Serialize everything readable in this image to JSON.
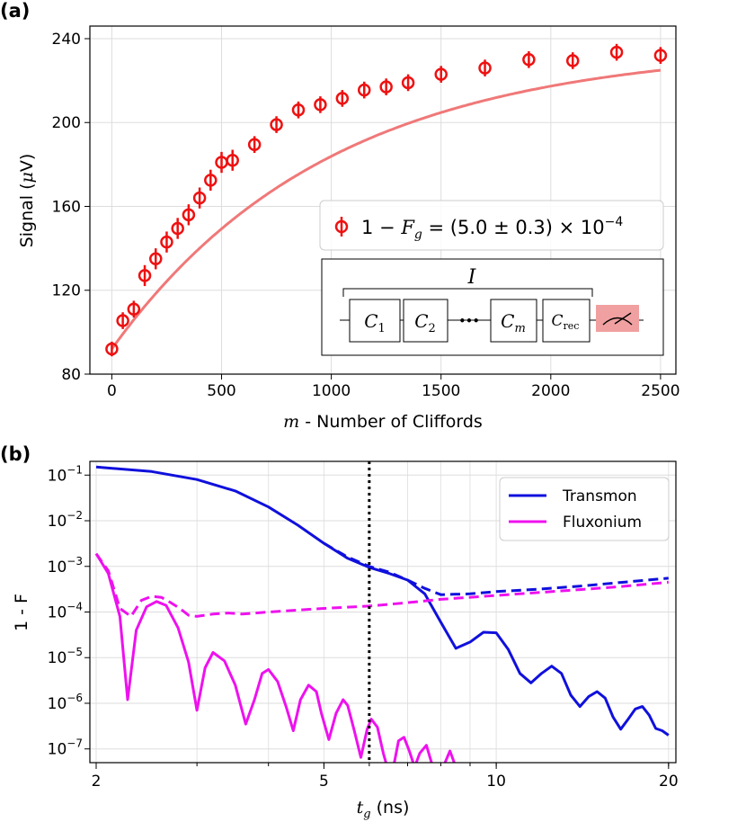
{
  "panels": {
    "a": "(a)",
    "b": "(b)"
  },
  "chart_data": [
    {
      "type": "scatter",
      "panel": "(a)",
      "xlabel_var": "m",
      "xlabel_rest": " - Number of Cliffords",
      "ylabel_main": "Signal (",
      "ylabel_mu": "μ",
      "ylabel_unit": "V)",
      "xlim": [
        -100,
        2570
      ],
      "ylim": [
        80,
        246
      ],
      "xticks": [
        0,
        500,
        1000,
        1500,
        2000,
        2500
      ],
      "yticks": [
        80,
        120,
        160,
        200,
        240
      ],
      "colors": {
        "points": "#ee1111",
        "fit": "#f07878"
      },
      "grid": true,
      "legend": {
        "placement": "right",
        "text": "1 − F_g = (5.0 ± 0.3) × 10^−4"
      },
      "fit": {
        "model": "exponential",
        "A": -144.5,
        "p": 0.99899,
        "B": 236.5
      },
      "series": [
        {
          "x": [
            0,
            50,
            100,
            150,
            200,
            250,
            300,
            350,
            400,
            450,
            500,
            550,
            650,
            750,
            850,
            950,
            1050,
            1150,
            1250,
            1350,
            1500,
            1700,
            1900,
            2100,
            2300,
            2500
          ],
          "y": [
            92,
            105.5,
            111,
            127,
            135,
            143,
            149.5,
            156,
            164,
            172.5,
            181,
            182,
            189.5,
            199,
            206,
            208.5,
            211.5,
            215.5,
            217,
            219,
            223,
            226,
            230,
            229.5,
            233.5,
            232
          ],
          "err": [
            3.5,
            4,
            4,
            5,
            5,
            5,
            5,
            5,
            5,
            5,
            5,
            5,
            4,
            4,
            4,
            4,
            4,
            4,
            4,
            4,
            4,
            4,
            4,
            4,
            4,
            4
          ]
        }
      ],
      "inset": {
        "top_label": "I",
        "boxes": [
          "C1",
          "C2",
          "Cm",
          "Crec"
        ],
        "ellipsis": "•••",
        "measure_color": "#f0a0a0"
      }
    },
    {
      "type": "line",
      "panel": "(b)",
      "xlabel_var": "t",
      "xlabel_sub": "g",
      "xlabel_rest": " (ns)",
      "ylabel": "1 - F",
      "xscale": "log",
      "yscale": "log",
      "xlim": [
        1.95,
        20.6
      ],
      "ylim": [
        5e-08,
        0.2
      ],
      "xticks": [
        2,
        5,
        10,
        20
      ],
      "yticks": [
        -1,
        -2,
        -3,
        -4,
        -5,
        -6,
        -7
      ],
      "vline_x": 6.0,
      "grid": true,
      "legend": {
        "placement": "top-right"
      },
      "series": [
        {
          "name": "Transmon",
          "color": "#1010dd",
          "solid": {
            "x": [
              2,
              2.5,
              3,
              3.5,
              4,
              4.5,
              5,
              5.5,
              6,
              6.5,
              7,
              7.5,
              8,
              8.5,
              9,
              9.5,
              10,
              10.5,
              11,
              11.5,
              12,
              12.5,
              13,
              13.5,
              14,
              14.5,
              15,
              15.5,
              16,
              16.5,
              17,
              17.5,
              18,
              18.5,
              19,
              19.5,
              20
            ],
            "y": [
              0.15,
              0.12,
              0.08,
              0.045,
              0.02,
              0.008,
              0.0032,
              0.0015,
              0.00095,
              0.0007,
              0.0005,
              0.00025,
              6e-05,
              1.6e-05,
              2.2e-05,
              3.6e-05,
              3.5e-05,
              1.5e-05,
              4.5e-06,
              2.8e-06,
              4.5e-06,
              6.5e-06,
              4.5e-06,
              1.5e-06,
              8.5e-07,
              1.4e-06,
              1.8e-06,
              1.3e-06,
              5e-07,
              2.7e-07,
              4.5e-07,
              7.5e-07,
              8.5e-07,
              5.5e-07,
              2.8e-07,
              2.5e-07,
              2e-07
            ]
          },
          "dashed": {
            "x": [
              5.0,
              5.5,
              6,
              6.5,
              7,
              7.5,
              8,
              9,
              10,
              12,
              14,
              16,
              18,
              20
            ],
            "y": [
              0.0032,
              0.0016,
              0.001,
              0.00075,
              0.0005,
              0.00033,
              0.00024,
              0.00025,
              0.00028,
              0.00032,
              0.00037,
              0.00043,
              0.00049,
              0.00055
            ]
          }
        },
        {
          "name": "Fluxonium",
          "color": "#ee11ee",
          "solid": {
            "x": [
              2,
              2.1,
              2.2,
              2.27,
              2.35,
              2.45,
              2.55,
              2.65,
              2.78,
              2.9,
              3.0,
              3.1,
              3.2,
              3.35,
              3.5,
              3.65,
              3.78,
              3.9,
              4.0,
              4.15,
              4.3,
              4.42,
              4.55,
              4.7,
              4.85,
              4.95,
              5.1,
              5.25,
              5.4,
              5.5,
              5.65,
              5.8,
              5.95,
              6.05,
              6.2,
              6.35,
              6.45,
              6.6,
              6.75,
              6.9,
              7.05,
              7.2,
              7.35,
              7.55,
              7.75,
              8.0,
              8.3,
              8.5
            ],
            "y": [
              0.0019,
              0.0007,
              8e-05,
              1.2e-06,
              4e-05,
              0.00013,
              0.00017,
              0.00014,
              4.5e-05,
              8e-06,
              7e-07,
              6e-06,
              1.3e-05,
              8.5e-06,
              2.5e-06,
              3.5e-07,
              1.2e-06,
              4.5e-06,
              5.5e-06,
              3e-06,
              8e-07,
              2.5e-07,
              1.2e-06,
              2.5e-06,
              1.8e-06,
              6e-07,
              1.6e-07,
              6e-07,
              1.2e-06,
              9e-07,
              2.5e-07,
              6.5e-08,
              2.7e-07,
              4.5e-07,
              3e-07,
              8e-08,
              4e-08,
              3.5e-08,
              1.5e-07,
              1.8e-07,
              9e-08,
              4e-08,
              8e-08,
              1.2e-07,
              4e-08,
              3e-08,
              9e-08,
              4e-08
            ]
          },
          "dashed": {
            "x": [
              2,
              2.1,
              2.2,
              2.3,
              2.4,
              2.5,
              2.6,
              2.7,
              2.8,
              2.9,
              3.0,
              3.2,
              3.4,
              3.6,
              3.8,
              4.0,
              5.0,
              6.0,
              7.0,
              8.0,
              10,
              12,
              14,
              16,
              18,
              20
            ],
            "y": [
              0.0019,
              0.0008,
              0.00012,
              8e-05,
              0.00018,
              0.00022,
              0.00021,
              0.00016,
              0.00012,
              8.5e-05,
              8e-05,
              9e-05,
              9.5e-05,
              9e-05,
              9.5e-05,
              0.0001,
              0.00012,
              0.000135,
              0.00016,
              0.00019,
              0.00023,
              0.00027,
              0.00031,
              0.00035,
              0.0004,
              0.00045
            ]
          }
        }
      ]
    }
  ]
}
